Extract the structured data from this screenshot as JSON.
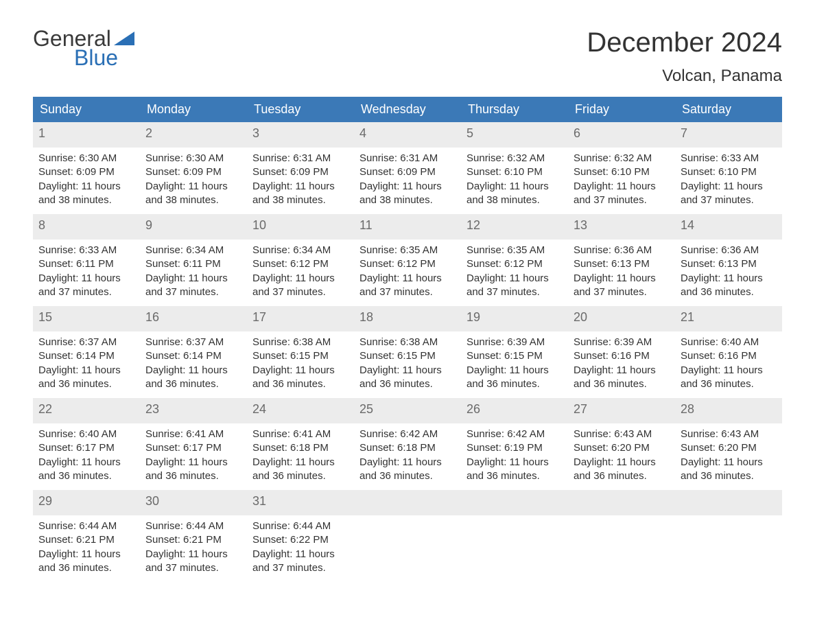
{
  "logo": {
    "line1": "General",
    "line2": "Blue",
    "flag_color": "#2a6fb5"
  },
  "title": "December 2024",
  "location": "Volcan, Panama",
  "colors": {
    "header_bg": "#3b79b7",
    "header_text": "#ffffff",
    "daynum_bg": "#ececec",
    "daynum_text": "#6a6a6a",
    "body_text": "#333333",
    "week_border": "#3b79b7"
  },
  "day_headers": [
    "Sunday",
    "Monday",
    "Tuesday",
    "Wednesday",
    "Thursday",
    "Friday",
    "Saturday"
  ],
  "label_sunrise": "Sunrise: ",
  "label_sunset": "Sunset: ",
  "label_daylight_prefix": "Daylight: ",
  "weeks": [
    [
      {
        "day": "1",
        "sunrise": "6:30 AM",
        "sunset": "6:09 PM",
        "daylight": "11 hours and 38 minutes."
      },
      {
        "day": "2",
        "sunrise": "6:30 AM",
        "sunset": "6:09 PM",
        "daylight": "11 hours and 38 minutes."
      },
      {
        "day": "3",
        "sunrise": "6:31 AM",
        "sunset": "6:09 PM",
        "daylight": "11 hours and 38 minutes."
      },
      {
        "day": "4",
        "sunrise": "6:31 AM",
        "sunset": "6:09 PM",
        "daylight": "11 hours and 38 minutes."
      },
      {
        "day": "5",
        "sunrise": "6:32 AM",
        "sunset": "6:10 PM",
        "daylight": "11 hours and 38 minutes."
      },
      {
        "day": "6",
        "sunrise": "6:32 AM",
        "sunset": "6:10 PM",
        "daylight": "11 hours and 37 minutes."
      },
      {
        "day": "7",
        "sunrise": "6:33 AM",
        "sunset": "6:10 PM",
        "daylight": "11 hours and 37 minutes."
      }
    ],
    [
      {
        "day": "8",
        "sunrise": "6:33 AM",
        "sunset": "6:11 PM",
        "daylight": "11 hours and 37 minutes."
      },
      {
        "day": "9",
        "sunrise": "6:34 AM",
        "sunset": "6:11 PM",
        "daylight": "11 hours and 37 minutes."
      },
      {
        "day": "10",
        "sunrise": "6:34 AM",
        "sunset": "6:12 PM",
        "daylight": "11 hours and 37 minutes."
      },
      {
        "day": "11",
        "sunrise": "6:35 AM",
        "sunset": "6:12 PM",
        "daylight": "11 hours and 37 minutes."
      },
      {
        "day": "12",
        "sunrise": "6:35 AM",
        "sunset": "6:12 PM",
        "daylight": "11 hours and 37 minutes."
      },
      {
        "day": "13",
        "sunrise": "6:36 AM",
        "sunset": "6:13 PM",
        "daylight": "11 hours and 37 minutes."
      },
      {
        "day": "14",
        "sunrise": "6:36 AM",
        "sunset": "6:13 PM",
        "daylight": "11 hours and 36 minutes."
      }
    ],
    [
      {
        "day": "15",
        "sunrise": "6:37 AM",
        "sunset": "6:14 PM",
        "daylight": "11 hours and 36 minutes."
      },
      {
        "day": "16",
        "sunrise": "6:37 AM",
        "sunset": "6:14 PM",
        "daylight": "11 hours and 36 minutes."
      },
      {
        "day": "17",
        "sunrise": "6:38 AM",
        "sunset": "6:15 PM",
        "daylight": "11 hours and 36 minutes."
      },
      {
        "day": "18",
        "sunrise": "6:38 AM",
        "sunset": "6:15 PM",
        "daylight": "11 hours and 36 minutes."
      },
      {
        "day": "19",
        "sunrise": "6:39 AM",
        "sunset": "6:15 PM",
        "daylight": "11 hours and 36 minutes."
      },
      {
        "day": "20",
        "sunrise": "6:39 AM",
        "sunset": "6:16 PM",
        "daylight": "11 hours and 36 minutes."
      },
      {
        "day": "21",
        "sunrise": "6:40 AM",
        "sunset": "6:16 PM",
        "daylight": "11 hours and 36 minutes."
      }
    ],
    [
      {
        "day": "22",
        "sunrise": "6:40 AM",
        "sunset": "6:17 PM",
        "daylight": "11 hours and 36 minutes."
      },
      {
        "day": "23",
        "sunrise": "6:41 AM",
        "sunset": "6:17 PM",
        "daylight": "11 hours and 36 minutes."
      },
      {
        "day": "24",
        "sunrise": "6:41 AM",
        "sunset": "6:18 PM",
        "daylight": "11 hours and 36 minutes."
      },
      {
        "day": "25",
        "sunrise": "6:42 AM",
        "sunset": "6:18 PM",
        "daylight": "11 hours and 36 minutes."
      },
      {
        "day": "26",
        "sunrise": "6:42 AM",
        "sunset": "6:19 PM",
        "daylight": "11 hours and 36 minutes."
      },
      {
        "day": "27",
        "sunrise": "6:43 AM",
        "sunset": "6:20 PM",
        "daylight": "11 hours and 36 minutes."
      },
      {
        "day": "28",
        "sunrise": "6:43 AM",
        "sunset": "6:20 PM",
        "daylight": "11 hours and 36 minutes."
      }
    ],
    [
      {
        "day": "29",
        "sunrise": "6:44 AM",
        "sunset": "6:21 PM",
        "daylight": "11 hours and 36 minutes."
      },
      {
        "day": "30",
        "sunrise": "6:44 AM",
        "sunset": "6:21 PM",
        "daylight": "11 hours and 37 minutes."
      },
      {
        "day": "31",
        "sunrise": "6:44 AM",
        "sunset": "6:22 PM",
        "daylight": "11 hours and 37 minutes."
      },
      null,
      null,
      null,
      null
    ]
  ]
}
